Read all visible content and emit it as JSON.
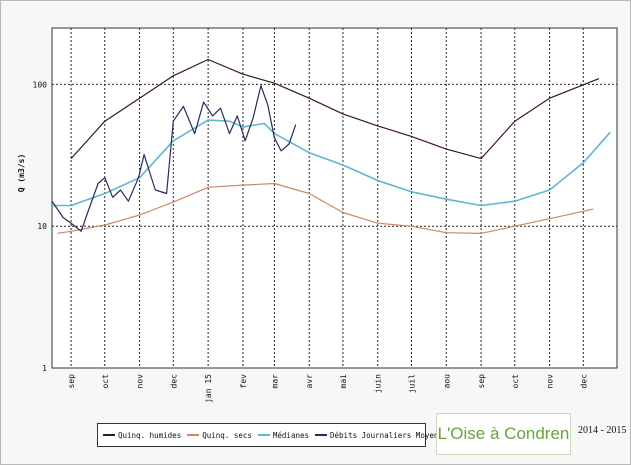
{
  "chart_data": {
    "type": "line",
    "title": "",
    "xlabel": "",
    "ylabel": "Q (m3/s)",
    "yscale": "log",
    "ylim": [
      1,
      250
    ],
    "yticks": [
      1,
      10,
      100
    ],
    "ytick_labels": [
      "1",
      "10",
      "100"
    ],
    "xlim": [
      "2014-08-15",
      "2015-12-31"
    ],
    "x_ticks": [
      {
        "date": "2014-09-01",
        "label": "sep"
      },
      {
        "date": "2014-10-01",
        "label": "oct"
      },
      {
        "date": "2014-11-01",
        "label": "nov"
      },
      {
        "date": "2014-12-01",
        "label": "dec"
      },
      {
        "date": "2015-01-01",
        "label": "jan 15"
      },
      {
        "date": "2015-02-01",
        "label": "fev"
      },
      {
        "date": "2015-03-01",
        "label": "mar"
      },
      {
        "date": "2015-04-01",
        "label": "avr"
      },
      {
        "date": "2015-05-01",
        "label": "mai"
      },
      {
        "date": "2015-06-01",
        "label": "juin"
      },
      {
        "date": "2015-07-01",
        "label": "juil"
      },
      {
        "date": "2015-08-01",
        "label": "aou"
      },
      {
        "date": "2015-09-01",
        "label": "sep"
      },
      {
        "date": "2015-10-01",
        "label": "oct"
      },
      {
        "date": "2015-11-01",
        "label": "nov"
      },
      {
        "date": "2015-12-01",
        "label": "dec"
      }
    ],
    "grid": true,
    "legend_position": "bottom",
    "series": [
      {
        "name": "Quinq. humides",
        "color": "#3a1a1a",
        "points": [
          [
            "2014-09-01",
            30
          ],
          [
            "2014-10-01",
            55
          ],
          [
            "2014-11-01",
            80
          ],
          [
            "2014-12-01",
            115
          ],
          [
            "2015-01-01",
            150
          ],
          [
            "2015-02-01",
            118
          ],
          [
            "2015-03-01",
            102
          ],
          [
            "2015-04-01",
            80
          ],
          [
            "2015-05-01",
            62
          ],
          [
            "2015-06-01",
            51
          ],
          [
            "2015-07-01",
            43
          ],
          [
            "2015-08-01",
            35
          ],
          [
            "2015-09-01",
            30
          ],
          [
            "2015-10-01",
            55
          ],
          [
            "2015-11-01",
            80
          ],
          [
            "2015-12-15",
            110
          ]
        ]
      },
      {
        "name": "Quinq. secs",
        "color": "#cc8866",
        "points": [
          [
            "2014-08-20",
            8.9
          ],
          [
            "2014-09-01",
            9.2
          ],
          [
            "2014-10-01",
            10.2
          ],
          [
            "2014-11-01",
            12.0
          ],
          [
            "2014-12-01",
            14.8
          ],
          [
            "2015-01-01",
            18.8
          ],
          [
            "2015-02-01",
            19.5
          ],
          [
            "2015-03-01",
            20.0
          ],
          [
            "2015-04-01",
            17.0
          ],
          [
            "2015-05-01",
            12.5
          ],
          [
            "2015-06-01",
            10.5
          ],
          [
            "2015-07-01",
            10.0
          ],
          [
            "2015-08-01",
            9.0
          ],
          [
            "2015-09-01",
            8.9
          ],
          [
            "2015-10-01",
            10.0
          ],
          [
            "2015-11-01",
            11.3
          ],
          [
            "2015-12-10",
            13.2
          ]
        ]
      },
      {
        "name": "Médianes",
        "color": "#5fb7d0",
        "points": [
          [
            "2014-08-15",
            14
          ],
          [
            "2014-09-01",
            14
          ],
          [
            "2014-10-01",
            17
          ],
          [
            "2014-11-01",
            22
          ],
          [
            "2014-12-01",
            40
          ],
          [
            "2015-01-01",
            56
          ],
          [
            "2015-01-20",
            55
          ],
          [
            "2015-02-01",
            50
          ],
          [
            "2015-02-20",
            53
          ],
          [
            "2015-03-01",
            45
          ],
          [
            "2015-04-01",
            33
          ],
          [
            "2015-05-01",
            27
          ],
          [
            "2015-06-01",
            21
          ],
          [
            "2015-07-01",
            17.5
          ],
          [
            "2015-08-01",
            15.5
          ],
          [
            "2015-09-01",
            14
          ],
          [
            "2015-10-01",
            15
          ],
          [
            "2015-11-01",
            18
          ],
          [
            "2015-12-01",
            28
          ],
          [
            "2015-12-25",
            46
          ]
        ]
      },
      {
        "name": "Débits Journaliers Moyens",
        "color": "#2a2a5a",
        "points": [
          [
            "2014-08-15",
            15
          ],
          [
            "2014-08-25",
            11.5
          ],
          [
            "2014-09-01",
            10.5
          ],
          [
            "2014-09-10",
            9.2
          ],
          [
            "2014-09-15",
            12
          ],
          [
            "2014-09-25",
            20
          ],
          [
            "2014-10-01",
            22
          ],
          [
            "2014-10-08",
            16
          ],
          [
            "2014-10-15",
            18
          ],
          [
            "2014-10-22",
            15
          ],
          [
            "2014-10-31",
            22
          ],
          [
            "2014-11-05",
            32
          ],
          [
            "2014-11-15",
            18
          ],
          [
            "2014-11-25",
            17
          ],
          [
            "2014-12-01",
            55
          ],
          [
            "2014-12-10",
            70
          ],
          [
            "2014-12-20",
            45
          ],
          [
            "2014-12-28",
            75
          ],
          [
            "2015-01-05",
            60
          ],
          [
            "2015-01-12",
            68
          ],
          [
            "2015-01-20",
            45
          ],
          [
            "2015-01-27",
            60
          ],
          [
            "2015-02-03",
            40
          ],
          [
            "2015-02-10",
            58
          ],
          [
            "2015-02-17",
            98
          ],
          [
            "2015-02-23",
            72
          ],
          [
            "2015-03-01",
            42
          ],
          [
            "2015-03-07",
            34
          ],
          [
            "2015-03-14",
            38
          ],
          [
            "2015-03-20",
            52
          ]
        ]
      }
    ]
  },
  "legend": {
    "items": [
      {
        "label": "Quinq. humides",
        "color": "#3a1a1a"
      },
      {
        "label": "Quinq. secs",
        "color": "#cc8866"
      },
      {
        "label": "Médianes",
        "color": "#5fb7d0"
      },
      {
        "label": "Débits Journaliers Moyens",
        "color": "#2a2a5a"
      }
    ]
  },
  "station_label": "L'Oise à Condren",
  "season_label": "2014 - 2015"
}
